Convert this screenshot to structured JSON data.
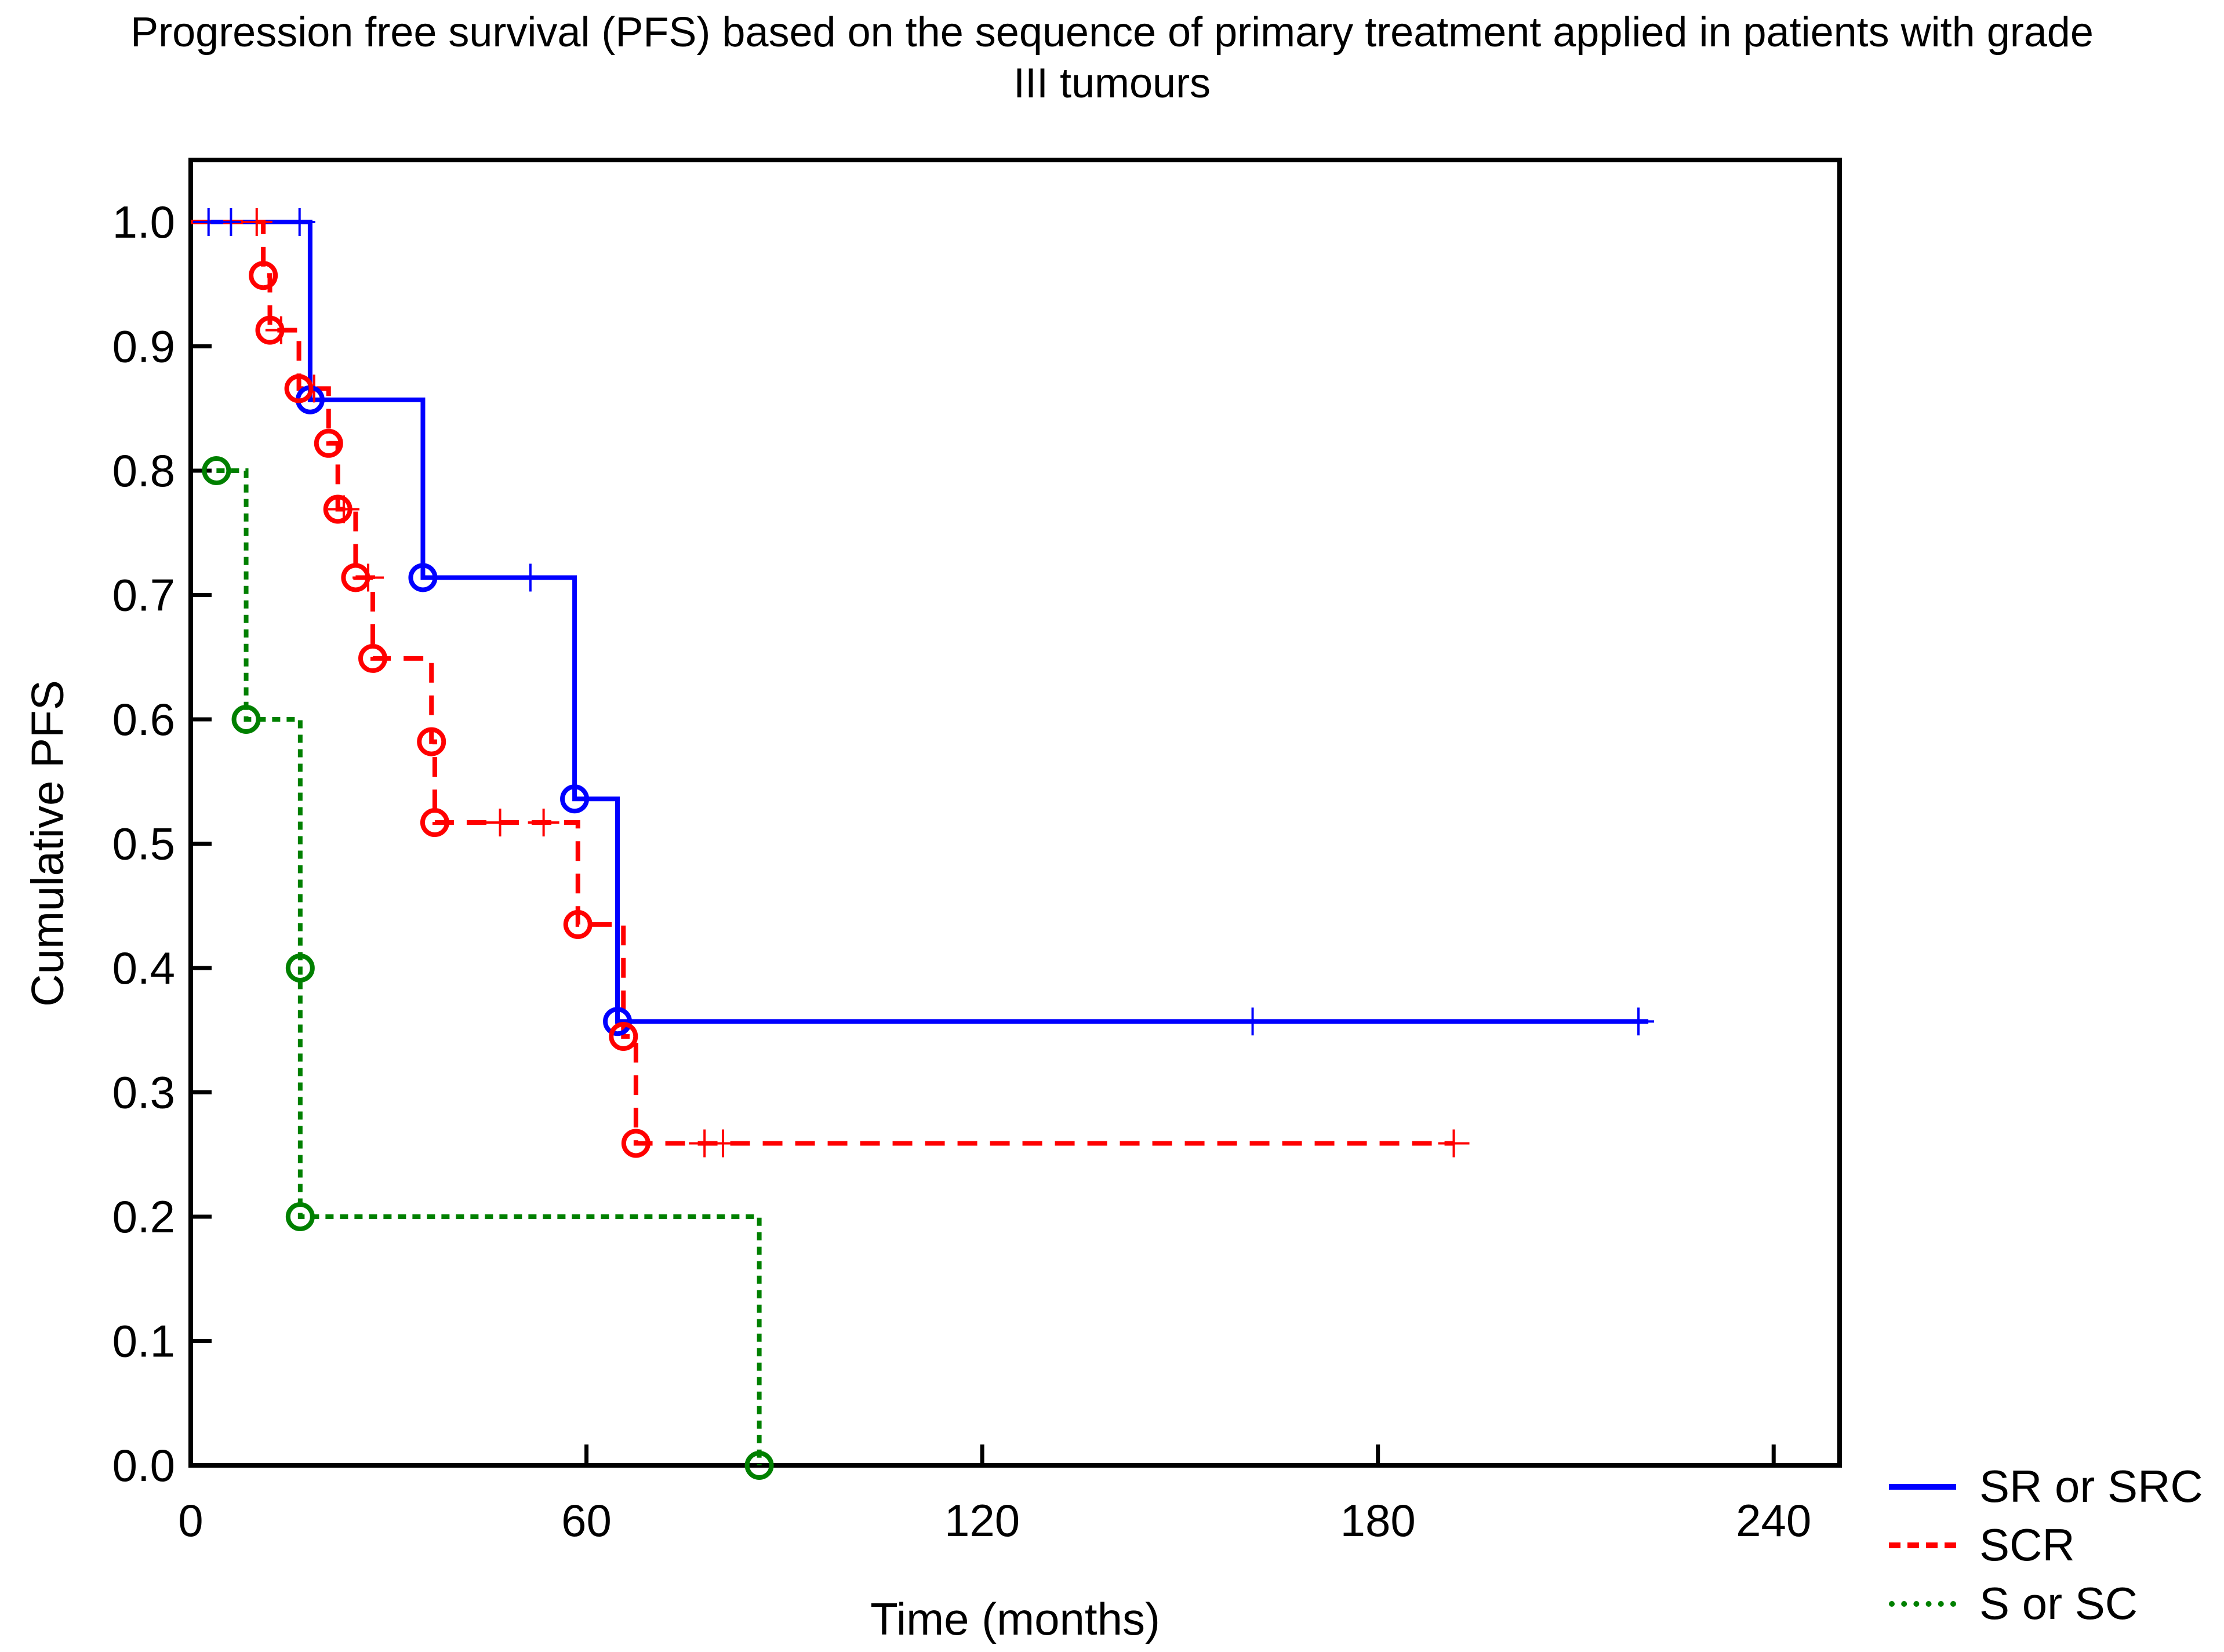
{
  "title_lines": [
    "Progression free survival (PFS) based on the sequence of primary treatment applied in patients with grade",
    "III tumours"
  ],
  "chart_data": {
    "type": "line",
    "subtype": "kaplan-meier-step",
    "title": "Progression free survival (PFS) based on the sequence of primary treatment applied in patients with grade III tumours",
    "xlabel": "Time (months)",
    "ylabel": "Cumulative PFS",
    "xlim": [
      0,
      250
    ],
    "ylim": [
      0.0,
      1.0
    ],
    "x_ticks": [
      0,
      60,
      120,
      180,
      240
    ],
    "y_ticks": [
      "0.0",
      "0.1",
      "0.2",
      "0.3",
      "0.4",
      "0.5",
      "0.6",
      "0.7",
      "0.8",
      "0.9",
      "1.0"
    ],
    "grid": false,
    "legend_position": "bottom-right",
    "marker_legend": {
      "event": "circle",
      "censored": "plus"
    },
    "series": [
      {
        "name": "SR or SRC",
        "color": "#0000ff",
        "line_style": "solid",
        "start": {
          "t": 0,
          "s": 1.0
        },
        "steps": [
          [
            18.1,
            0.857
          ],
          [
            35.2,
            0.714
          ],
          [
            58.2,
            0.536
          ],
          [
            64.7,
            0.357
          ]
        ],
        "end_t": 221,
        "events": [
          [
            18.1,
            0.857
          ],
          [
            35.2,
            0.714
          ],
          [
            58.2,
            0.536
          ],
          [
            64.7,
            0.357
          ]
        ],
        "censored": [
          [
            2.7,
            1.0
          ],
          [
            6.1,
            1.0
          ],
          [
            16.5,
            1.0
          ],
          [
            51.5,
            0.714
          ],
          [
            161,
            0.357
          ],
          [
            219.5,
            0.357
          ]
        ]
      },
      {
        "name": "SCR",
        "color": "#ff0000",
        "line_style": "dashed",
        "start": {
          "t": 0,
          "s": 1.0
        },
        "steps": [
          [
            11,
            0.957
          ],
          [
            12,
            0.913
          ],
          [
            16.4,
            0.866
          ],
          [
            20.9,
            0.822
          ],
          [
            22.3,
            0.769
          ],
          [
            25,
            0.714
          ],
          [
            27.6,
            0.649
          ],
          [
            36.5,
            0.582
          ],
          [
            37,
            0.517
          ],
          [
            58.7,
            0.435
          ],
          [
            65.6,
            0.345
          ],
          [
            67.5,
            0.259
          ]
        ],
        "end_t": 191.5,
        "events": [
          [
            11,
            0.957
          ],
          [
            12,
            0.913
          ],
          [
            16.4,
            0.866
          ],
          [
            20.9,
            0.822
          ],
          [
            22.3,
            0.769
          ],
          [
            25,
            0.714
          ],
          [
            27.6,
            0.649
          ],
          [
            36.5,
            0.582
          ],
          [
            37,
            0.517
          ],
          [
            58.7,
            0.435
          ],
          [
            65.6,
            0.345
          ],
          [
            67.5,
            0.259
          ]
        ],
        "censored": [
          [
            10,
            1.0
          ],
          [
            13.7,
            0.913
          ],
          [
            18.7,
            0.866
          ],
          [
            23.2,
            0.769
          ],
          [
            26.9,
            0.714
          ],
          [
            46.9,
            0.517
          ],
          [
            53.5,
            0.517
          ],
          [
            77.9,
            0.259
          ],
          [
            80.7,
            0.259
          ],
          [
            191.5,
            0.259
          ]
        ]
      },
      {
        "name": "S or SC",
        "color": "#008000",
        "line_style": "dotted",
        "start": {
          "t": 3.9,
          "s": 0.8
        },
        "steps": [
          [
            8.4,
            0.6
          ],
          [
            16.6,
            0.4
          ],
          [
            16.6,
            0.2
          ],
          [
            86.2,
            0.0
          ]
        ],
        "end_t": 86.2,
        "events": [
          [
            3.9,
            0.8
          ],
          [
            8.4,
            0.6
          ],
          [
            16.6,
            0.4
          ],
          [
            16.6,
            0.2
          ],
          [
            86.2,
            0.0
          ]
        ],
        "censored": []
      }
    ]
  }
}
